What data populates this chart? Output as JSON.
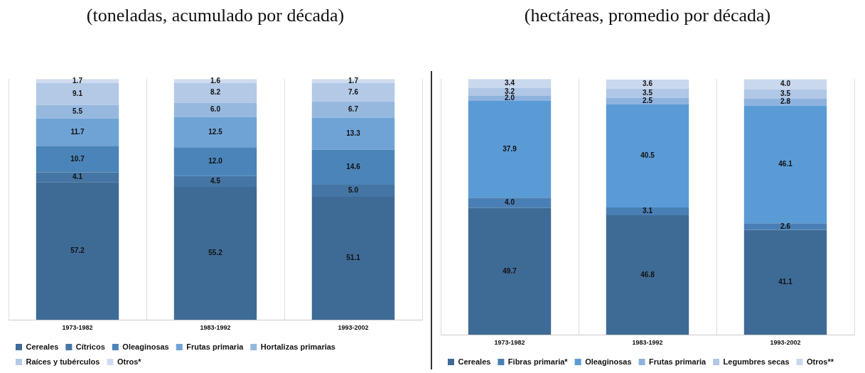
{
  "chart_data": [
    {
      "type": "bar",
      "title": "(toneladas, acumulado por década)",
      "categories": [
        "1973-1982",
        "1983-1992",
        "1993-2002"
      ],
      "stacked": true,
      "grid": "x",
      "legend": "bottom",
      "series": [
        {
          "name": "Cereales",
          "color": "#3e6b96",
          "values": [
            57.2,
            55.2,
            51.1
          ],
          "value_labels": [
            "57.2",
            "55.2",
            "51.1"
          ]
        },
        {
          "name": "Cítricos",
          "color": "#4575a4",
          "values": [
            4.1,
            4.5,
            5.0
          ],
          "value_labels": [
            "4.1",
            "4.5",
            "5.0"
          ]
        },
        {
          "name": "Oleaginosas",
          "color": "#4a84b9",
          "values": [
            10.7,
            12.0,
            14.6
          ],
          "value_labels": [
            "10.7",
            "12.0",
            "14.6"
          ]
        },
        {
          "name": "Frutas primaria",
          "color": "#6fa3d6",
          "values": [
            11.7,
            12.5,
            13.3
          ],
          "value_labels": [
            "11.7",
            "12.5",
            "13.3"
          ]
        },
        {
          "name": "Hortalizas primarias",
          "color": "#96b8de",
          "values": [
            5.5,
            6.0,
            6.7
          ],
          "value_labels": [
            "5.5",
            "6.0",
            "6.7"
          ]
        },
        {
          "name": "Raíces y tubérculos",
          "color": "#b3c9e6",
          "values": [
            9.1,
            8.2,
            7.6
          ],
          "value_labels": [
            "9.1",
            "8.2",
            "7.6"
          ]
        },
        {
          "name": "Otros*",
          "color": "#cfdcef",
          "values": [
            1.7,
            1.6,
            1.7
          ],
          "value_labels": [
            "1.7",
            "1.6",
            "1.7"
          ]
        }
      ]
    },
    {
      "type": "bar",
      "title": "(hectáreas, promedio por década)",
      "categories": [
        "1973-1982",
        "1983-1992",
        "1993-2002"
      ],
      "stacked": true,
      "grid": "x",
      "legend": "bottom",
      "series": [
        {
          "name": "Cereales",
          "color": "#3e6b96",
          "values": [
            49.7,
            46.8,
            41.1
          ],
          "value_labels": [
            "49.7",
            "46.8",
            "41.1"
          ]
        },
        {
          "name": "Fibras primaria*",
          "color": "#4a7fb5",
          "values": [
            4.0,
            3.1,
            2.6
          ],
          "value_labels": [
            "4.0",
            "3.1",
            "2.6"
          ]
        },
        {
          "name": "Oleaginosas",
          "color": "#5b9bd5",
          "values": [
            37.9,
            40.5,
            46.1
          ],
          "value_labels": [
            "37.9",
            "40.5",
            "46.1"
          ]
        },
        {
          "name": "Frutas primaria",
          "color": "#8fb3df",
          "values": [
            2.0,
            2.5,
            2.8
          ],
          "value_labels": [
            "2.0",
            "2.5",
            "2.8"
          ]
        },
        {
          "name": "Legumbres secas",
          "color": "#b0c7e6",
          "values": [
            3.2,
            3.5,
            3.5
          ],
          "value_labels": [
            "3.2",
            "3.5",
            "3.5"
          ]
        },
        {
          "name": "Otros**",
          "color": "#cad8ee",
          "values": [
            3.4,
            3.6,
            4.0
          ],
          "value_labels": [
            "3.4",
            "3.6",
            "4.0"
          ]
        }
      ]
    }
  ]
}
